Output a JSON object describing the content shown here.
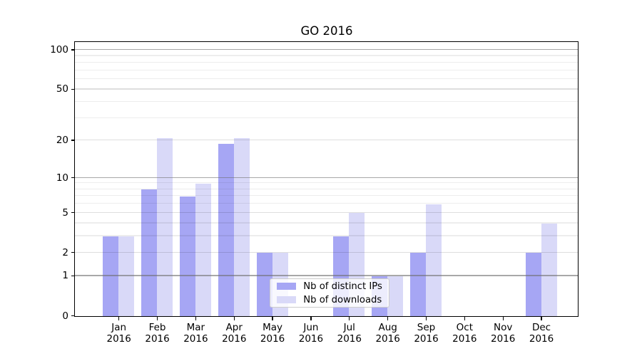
{
  "chart_data": {
    "type": "bar",
    "title": "GO 2016",
    "x_categories": [
      "Jan",
      "Feb",
      "Mar",
      "Apr",
      "May",
      "Jun",
      "Jul",
      "Aug",
      "Sep",
      "Oct",
      "Nov",
      "Dec"
    ],
    "x_sub_label": "2016",
    "series": [
      {
        "name": "Nb of distinct IPs",
        "color": "#a6a6f4",
        "values": [
          3,
          8,
          7,
          19,
          2,
          0,
          3,
          1,
          2,
          0,
          0,
          2
        ]
      },
      {
        "name": "Nb of downloads",
        "color": "#d9d9f8",
        "values": [
          3,
          21,
          9,
          21,
          2,
          0,
          5,
          1,
          6,
          0,
          0,
          4
        ]
      }
    ],
    "yscale": "log1p",
    "ylim": [
      0,
      113.2
    ],
    "y_major_ticks": [
      0,
      1,
      2,
      5,
      10,
      20,
      50,
      100
    ],
    "y_minor_gridlines": [
      3,
      4,
      6,
      7,
      8,
      9,
      30,
      40,
      60,
      70,
      80,
      90
    ],
    "decade_gridlines": [
      1,
      10,
      100
    ],
    "grid": true,
    "legend_position": "lower-center-left",
    "colors": {
      "spine": "#000000",
      "decade_grid": "#b0b0b0",
      "minor_grid": "#ededed",
      "legend_border": "#cccccc"
    }
  }
}
